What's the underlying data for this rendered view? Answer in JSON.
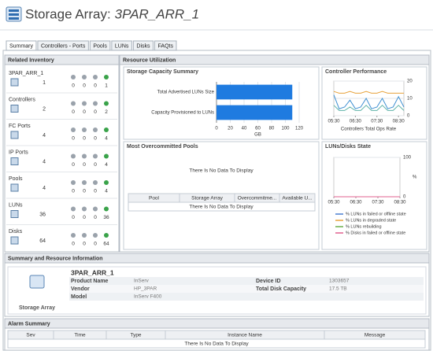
{
  "header": {
    "title_prefix": "Storage Array:",
    "title_name": "3PAR_ARR_1"
  },
  "tabs": [
    "Summary",
    "Controllers - Ports",
    "Pools",
    "LUNs",
    "Disks",
    "FAQts"
  ],
  "related_inventory": {
    "title": "Related Inventory",
    "items": [
      {
        "name": "3PAR_ARR_1",
        "count": 1,
        "status": [
          0,
          0,
          0,
          1
        ]
      },
      {
        "name": "Controllers",
        "count": 2,
        "status": [
          0,
          0,
          0,
          2
        ]
      },
      {
        "name": "FC Ports",
        "count": 4,
        "status": [
          0,
          0,
          0,
          4
        ]
      },
      {
        "name": "IP Ports",
        "count": 4,
        "status": [
          0,
          0,
          0,
          4
        ]
      },
      {
        "name": "Pools",
        "count": 4,
        "status": [
          0,
          0,
          0,
          4
        ]
      },
      {
        "name": "LUNs",
        "count": 36,
        "status": [
          0,
          0,
          0,
          36
        ]
      },
      {
        "name": "Disks",
        "count": 64,
        "status": [
          0,
          0,
          0,
          64
        ]
      }
    ]
  },
  "resource_utilization": {
    "title": "Resource Utilization",
    "storage_capacity": {
      "title": "Storage Capacity Summary",
      "chart_data": {
        "type": "hbar",
        "categories": [
          "Total Advertised LUNs Size",
          "Capacity Provisioned to LUNs"
        ],
        "values": [
          110,
          110
        ],
        "color": "#1f7be0",
        "xlim": [
          0,
          120
        ],
        "xticks": [
          0,
          20,
          40,
          60,
          80,
          100,
          120
        ],
        "x_label": "GB",
        "grid": true
      }
    },
    "controller_performance": {
      "title": "Controller Performance",
      "chart_data": {
        "type": "line",
        "categories": [
          "05:30",
          null,
          null,
          null,
          "06:30",
          null,
          null,
          null,
          "07:30",
          null,
          null,
          null,
          "08:30",
          null
        ],
        "series": [
          {
            "color": "#e8a33c",
            "values": [
              14,
              13,
              13,
              14,
              13,
              13,
              14,
              13,
              13,
              14,
              13,
              13,
              13,
              13
            ]
          },
          {
            "color": "#3d8fd1",
            "values": [
              12,
              4,
              5,
              9,
              4,
              5,
              10,
              4,
              5,
              10,
              4,
              5,
              11,
              5
            ]
          },
          {
            "color": "#5fb3a8",
            "values": [
              6,
              3,
              3,
              5,
              3,
              3,
              6,
              3,
              3,
              6,
              3,
              3,
              6,
              3
            ]
          }
        ],
        "ylim": [
          0,
          20
        ],
        "yticks": [
          0,
          10,
          20
        ],
        "x_label": "Controllers Total Ops Rate",
        "grid": true
      }
    },
    "overcommitted_pools": {
      "title": "Most Overcommitted Pools",
      "message": "There Is No Data To Display",
      "table": {
        "columns": [
          "Pool",
          "Storage Array",
          "Overcommitme...",
          "Available U..."
        ],
        "empty_message": "There Is No Data To Display"
      }
    },
    "luns_disks_state": {
      "title": "LUNs/Disks State",
      "chart_data": {
        "type": "line",
        "categories": [
          "05:30",
          "06:30",
          "07:30",
          "08:30"
        ],
        "series": [
          {
            "name": "% LUNs in failed or offline state",
            "color": "#4a7fd0",
            "values": [
              0,
              0,
              0,
              0
            ]
          },
          {
            "name": "% LUNs in degraded state",
            "color": "#e8a33c",
            "values": [
              0,
              0,
              0,
              0
            ]
          },
          {
            "name": "% LUNs rebuilding",
            "color": "#6ab04c",
            "values": [
              0,
              0,
              0,
              0
            ]
          },
          {
            "name": "% Disks in failed or offline state",
            "color": "#e0608f",
            "values": [
              0,
              0,
              0,
              0
            ]
          }
        ],
        "ylim": [
          0,
          100
        ],
        "yticks": [
          0,
          100
        ],
        "y_label": "%",
        "grid": true
      }
    }
  },
  "summary_info": {
    "title": "Summary and Resource Information",
    "name": "3PAR_ARR_1",
    "type": "Storage Array",
    "fields_left": [
      {
        "label": "Product Name",
        "value": "InServ"
      },
      {
        "label": "Vendor",
        "value": "HP_3PAR"
      },
      {
        "label": "Model",
        "value": "InServ F400"
      }
    ],
    "fields_right": [
      {
        "label": "Device ID",
        "value": "1303657"
      },
      {
        "label": "Total Disk Capacity",
        "value": "17.5 TB"
      }
    ]
  },
  "alarm_summary": {
    "title": "Alarm Summary",
    "columns": [
      "Sev",
      "Time",
      "Type",
      "Instance Name",
      "Message"
    ],
    "empty_message": "There Is No Data To Display"
  }
}
